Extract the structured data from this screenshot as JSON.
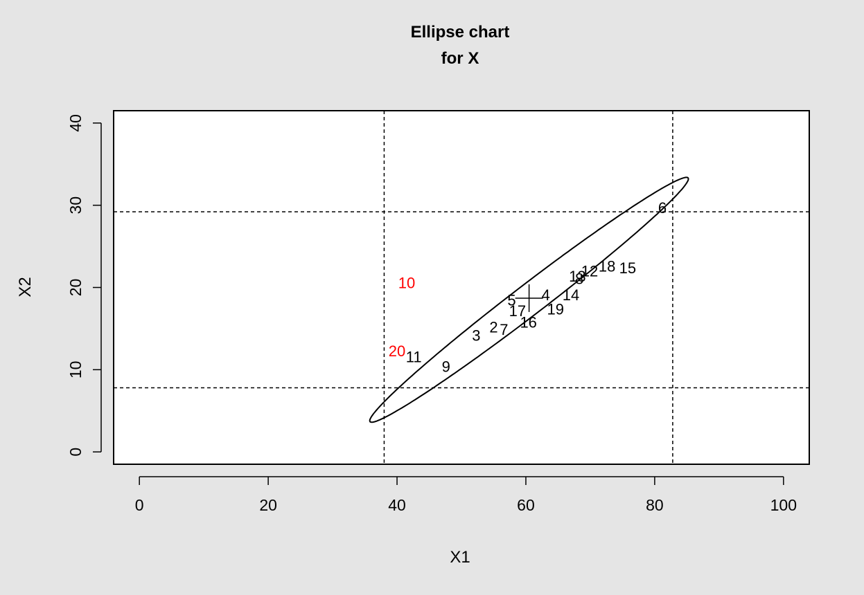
{
  "chart_data": {
    "type": "scatter",
    "title": [
      "Ellipse chart",
      "for X"
    ],
    "xlabel": "X1",
    "ylabel": "X2",
    "xlim": [
      -4,
      104
    ],
    "ylim": [
      -1.5,
      41.5
    ],
    "xticks": [
      0,
      20,
      40,
      60,
      80,
      100
    ],
    "yticks": [
      0,
      10,
      20,
      30,
      40
    ],
    "grid": false,
    "points": [
      {
        "label": "2",
        "x": 55.0,
        "y": 15.2,
        "color": "#000000"
      },
      {
        "label": "3",
        "x": 52.3,
        "y": 14.2,
        "color": "#000000"
      },
      {
        "label": "4",
        "x": 63.1,
        "y": 19.1,
        "color": "#000000"
      },
      {
        "label": "5",
        "x": 57.8,
        "y": 18.5,
        "color": "#000000"
      },
      {
        "label": "6",
        "x": 81.2,
        "y": 29.7,
        "color": "#000000"
      },
      {
        "label": "7",
        "x": 56.6,
        "y": 14.9,
        "color": "#000000"
      },
      {
        "label": "9",
        "x": 47.6,
        "y": 10.4,
        "color": "#000000"
      },
      {
        "label": "10",
        "x": 41.5,
        "y": 20.6,
        "color": "#ff0000"
      },
      {
        "label": "11",
        "x": 42.6,
        "y": 11.6,
        "color": "#000000"
      },
      {
        "label": "12",
        "x": 69.9,
        "y": 22.0,
        "color": "#000000"
      },
      {
        "label": "13",
        "x": 68.0,
        "y": 21.4,
        "color": "#000000"
      },
      {
        "label": "8",
        "x": 68.3,
        "y": 21.1,
        "color": "#000000"
      },
      {
        "label": "14",
        "x": 67.0,
        "y": 19.1,
        "color": "#000000"
      },
      {
        "label": "15",
        "x": 75.8,
        "y": 22.4,
        "color": "#000000"
      },
      {
        "label": "16",
        "x": 60.4,
        "y": 15.8,
        "color": "#000000"
      },
      {
        "label": "17",
        "x": 58.7,
        "y": 17.2,
        "color": "#000000"
      },
      {
        "label": "18",
        "x": 72.6,
        "y": 22.6,
        "color": "#000000"
      },
      {
        "label": "19",
        "x": 64.6,
        "y": 17.4,
        "color": "#000000"
      },
      {
        "label": "20",
        "x": 40.0,
        "y": 12.3,
        "color": "#ff0000"
      }
    ],
    "center_marker": {
      "x": 60.5,
      "y": 18.7
    },
    "control_limits": {
      "x1": [
        38.0,
        82.8
      ],
      "x2": [
        7.8,
        29.2
      ]
    },
    "ellipse": {
      "cx": 60.5,
      "cy": 18.5,
      "semi_major": 28.8,
      "semi_minor": 2.0,
      "angle_deg": 30.9
    },
    "colors": {
      "background": "#e5e5e5",
      "plot_bg": "#ffffff",
      "ink": "#000000",
      "out_of_control": "#ff0000"
    }
  }
}
